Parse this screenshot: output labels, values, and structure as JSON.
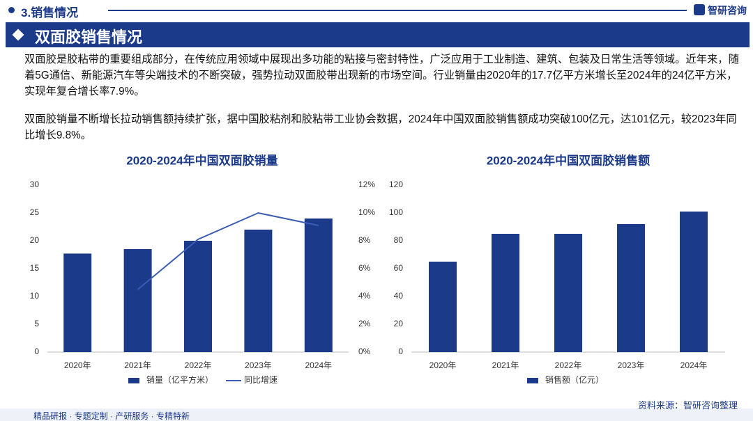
{
  "header": {
    "section": "3.销售情况",
    "brand": "智研咨询",
    "title": "双面胶销售情况"
  },
  "paragraphs": [
    "双面胶是胶粘带的重要组成部分，在传统应用领域中展现出多功能的粘接与密封特性，广泛应用于工业制造、建筑、包装及日常生活等领域。近年来，随着5G通信、新能源汽车等尖端技术的不断突破，强势拉动双面胶带出现新的市场空间。行业销量由2020年的17.7亿平方米增长至2024年的24亿平方米，实现年复合增长率7.9%。",
    "双面胶销量不断增长拉动销售额持续扩张，据中国胶粘剂和胶粘带工业协会数据，2024年中国双面胶销售额成功突破100亿元，达101亿元，较2023年同比增长9.8%。"
  ],
  "source": "资料来源：智研咨询整理",
  "footer": "精品研报 · 专题定制 · 产研服务 · 专精特新",
  "chart_data": [
    {
      "type": "bar",
      "title": "2020-2024年中国双面胶销量",
      "categories": [
        "2020年",
        "2021年",
        "2022年",
        "2023年",
        "2024年"
      ],
      "series": [
        {
          "name": "销量（亿平方米）",
          "type": "bar",
          "color": "#1c3a8a",
          "values": [
            17.7,
            18.5,
            20,
            22,
            24
          ]
        },
        {
          "name": "同比增速",
          "type": "line",
          "axis": "y2",
          "color": "#3a5cb4",
          "values": [
            null,
            4.5,
            8.1,
            10,
            9.1
          ]
        }
      ],
      "ylim": [
        0,
        30
      ],
      "yticks": [
        0,
        5,
        10,
        15,
        20,
        25,
        30
      ],
      "y2lim": [
        0,
        12
      ],
      "y2ticks": [
        {
          "value": 0,
          "label": "0%"
        },
        {
          "value": 2,
          "label": "2%"
        },
        {
          "value": 4,
          "label": "4%"
        },
        {
          "value": 6,
          "label": "6%"
        },
        {
          "value": 8,
          "label": "8%"
        },
        {
          "value": 10,
          "label": "10%"
        },
        {
          "value": 12,
          "label": "12%"
        }
      ],
      "grid": false,
      "legend": "bottom"
    },
    {
      "type": "bar",
      "title": "2020-2024年中国双面胶销售额",
      "categories": [
        "2020年",
        "2021年",
        "2022年",
        "2023年",
        "2024年"
      ],
      "series": [
        {
          "name": "销售额（亿元）",
          "type": "bar",
          "color": "#1c3a8a",
          "values": [
            65,
            85,
            85,
            92,
            101
          ]
        }
      ],
      "ylim": [
        0,
        120
      ],
      "yticks": [
        0,
        20,
        40,
        60,
        80,
        100,
        120
      ],
      "grid": false,
      "legend": "bottom"
    }
  ]
}
